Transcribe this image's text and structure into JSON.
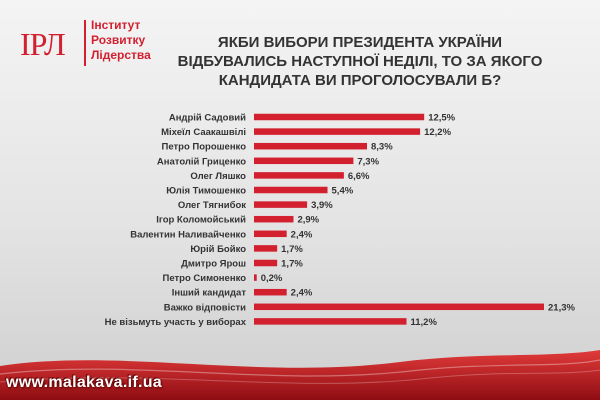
{
  "logo": {
    "abbr": "ІРЛ",
    "line1": "Інститут",
    "line2": "Розвитку",
    "line3": "Лідерства"
  },
  "title": {
    "line1": "ЯКБИ ВИБОРИ ПРЕЗИДЕНТА УКРАЇНИ",
    "line2": "ВІДБУВАЛИСЬ НАСТУПНОЇ НЕДІЛІ, ТО ЗА ЯКОГО",
    "line3": "КАНДИДАТА ВИ ПРОГОЛОСУВАЛИ Б?"
  },
  "watermark": "www.malakava.if.ua",
  "colors": {
    "accent": "#d2202f",
    "text": "#333333"
  },
  "chart_data": {
    "type": "bar",
    "orientation": "horizontal",
    "title": "ЯКБИ ВИБОРИ ПРЕЗИДЕНТА УКРАЇНИ ВІДБУВАЛИСЬ НАСТУПНОЇ НЕДІЛІ, ТО ЗА ЯКОГО КАНДИДАТА ВИ ПРОГОЛОСУВАЛИ Б?",
    "categories": [
      "Андрій Садовий",
      "Міхеїл Саакашвілі",
      "Петро Порошенко",
      "Анатолій Гриценко",
      "Олег Ляшко",
      "Юлія Тимошенко",
      "Олег Тягнибок",
      "Ігор Коломойський",
      "Валентин Наливайченко",
      "Юрій Бойко",
      "Дмитро Ярош",
      "Петро Симоненко",
      "Інший кандидат",
      "Важко відповісти",
      "Не візьмуть участь у виборах"
    ],
    "values": [
      12.5,
      12.2,
      8.3,
      7.3,
      6.6,
      5.4,
      3.9,
      2.9,
      2.4,
      1.7,
      1.7,
      0.2,
      2.4,
      21.3,
      11.2
    ],
    "value_labels": [
      "12,5%",
      "12,2%",
      "8,3%",
      "7,3%",
      "6,6%",
      "5,4%",
      "3,9%",
      "2,9%",
      "2,4%",
      "1,7%",
      "1,7%",
      "0,2%",
      "2,4%",
      "21,3%",
      "11,2%"
    ],
    "xlim": [
      0,
      21.3
    ],
    "unit": "%",
    "grid": false,
    "legend": "none"
  }
}
